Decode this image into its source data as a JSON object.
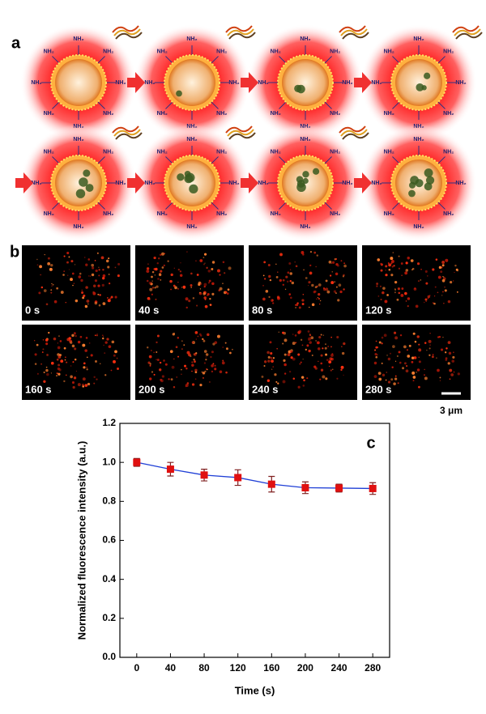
{
  "panel_a": {
    "label": "a",
    "group_label": "NH₂"
  },
  "panel_b": {
    "label": "b",
    "frames": [
      "0 s",
      "40 s",
      "80 s",
      "120 s",
      "160 s",
      "200 s",
      "240 s",
      "280 s"
    ],
    "scale_bar": "3 μm"
  },
  "chart_data": {
    "type": "line",
    "panel_label": "c",
    "x_label": "Time (s)",
    "y_label": "Normalized fluorescence intensity (a.u.)",
    "x": [
      0,
      40,
      80,
      120,
      160,
      200,
      240,
      280
    ],
    "series": [
      {
        "color": "#1f3fd6",
        "marker_color": "#e01010",
        "values": [
          1.0,
          0.965,
          0.935,
          0.922,
          0.888,
          0.87,
          0.868,
          0.866
        ],
        "errors": [
          0.02,
          0.035,
          0.03,
          0.04,
          0.04,
          0.03,
          0.02,
          0.03
        ]
      }
    ],
    "xlim": [
      -20,
      300
    ],
    "xticks": [
      0,
      40,
      80,
      120,
      160,
      200,
      240,
      280
    ],
    "ylim": [
      0,
      1.2
    ],
    "yticks": [
      {
        "value": 0,
        "label": "0.0"
      },
      {
        "value": 0.2,
        "label": "0.2"
      },
      {
        "value": 0.4,
        "label": "0.4"
      },
      {
        "value": 0.6,
        "label": "0.6"
      },
      {
        "value": 0.8,
        "label": "0.8"
      },
      {
        "value": 1.0,
        "label": "1.0"
      },
      {
        "value": 1.2,
        "label": "1.2"
      }
    ]
  }
}
